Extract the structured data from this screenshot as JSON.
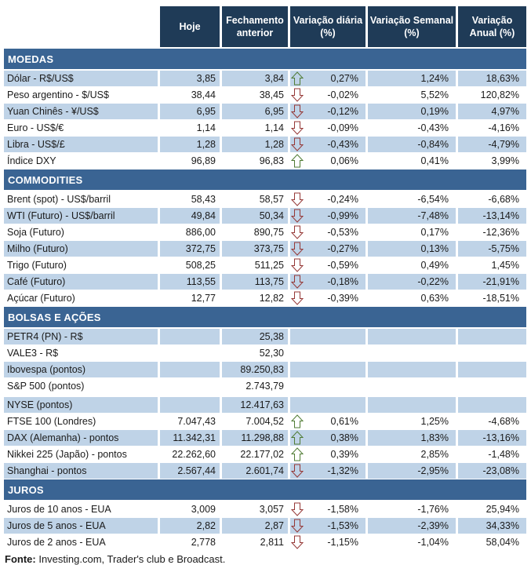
{
  "header": {
    "columns": [
      "Hoje",
      "Fechamento anterior",
      "Variação diária (%)",
      "Variação Semanal (%)",
      "Variação Anual (%)"
    ]
  },
  "colors": {
    "header_bg": "#1F3B57",
    "band_bg": "#3A6493",
    "row_shade": "#BFD3E7",
    "arrow_up_fill_light": "#BFE3A8",
    "arrow_up_fill_dark": "#62A73F",
    "arrow_up_stroke": "#4F7B33",
    "arrow_down_fill_light": "#F2B2AC",
    "arrow_down_fill_dark": "#D3645C",
    "arrow_down_stroke": "#953735"
  },
  "sections": [
    {
      "title": "MOEDAS",
      "rows": [
        {
          "label": "Dólar - R$/US$",
          "hoje": "3,85",
          "fechamento": "3,84",
          "arrow": "up",
          "diaria": "0,27%",
          "semanal": "1,24%",
          "anual": "18,63%",
          "shade": true
        },
        {
          "label": "Peso argentino - $/US$",
          "hoje": "38,44",
          "fechamento": "38,45",
          "arrow": "down",
          "diaria": "-0,02%",
          "semanal": "5,52%",
          "anual": "120,82%",
          "shade": false
        },
        {
          "label": "Yuan Chinês - ¥/US$",
          "hoje": "6,95",
          "fechamento": "6,95",
          "arrow": "down",
          "diaria": "-0,12%",
          "semanal": "0,19%",
          "anual": "4,97%",
          "shade": true
        },
        {
          "label": "Euro - US$/€",
          "hoje": "1,14",
          "fechamento": "1,14",
          "arrow": "down",
          "diaria": "-0,09%",
          "semanal": "-0,43%",
          "anual": "-4,16%",
          "shade": false
        },
        {
          "label": "Libra - US$/£",
          "hoje": "1,28",
          "fechamento": "1,28",
          "arrow": "down",
          "diaria": "-0,43%",
          "semanal": "-0,84%",
          "anual": "-4,79%",
          "shade": true
        },
        {
          "label": "Índice DXY",
          "hoje": "96,89",
          "fechamento": "96,83",
          "arrow": "up",
          "diaria": "0,06%",
          "semanal": "0,41%",
          "anual": "3,99%",
          "shade": false
        }
      ]
    },
    {
      "title": "COMMODITIES",
      "rows": [
        {
          "label": "Brent (spot) - US$/barril",
          "hoje": "58,43",
          "fechamento": "58,57",
          "arrow": "down",
          "diaria": "-0,24%",
          "semanal": "-6,54%",
          "anual": "-6,68%",
          "shade": false
        },
        {
          "label": "WTI (Futuro) - US$/barril",
          "hoje": "49,84",
          "fechamento": "50,34",
          "arrow": "down",
          "diaria": "-0,99%",
          "semanal": "-7,48%",
          "anual": "-13,14%",
          "shade": true
        },
        {
          "label": "Soja (Futuro)",
          "hoje": "886,00",
          "fechamento": "890,75",
          "arrow": "down",
          "diaria": "-0,53%",
          "semanal": "0,17%",
          "anual": "-12,36%",
          "shade": false
        },
        {
          "label": "Milho (Futuro)",
          "hoje": "372,75",
          "fechamento": "373,75",
          "arrow": "down",
          "diaria": "-0,27%",
          "semanal": "0,13%",
          "anual": "-5,75%",
          "shade": true
        },
        {
          "label": "Trigo (Futuro)",
          "hoje": "508,25",
          "fechamento": "511,25",
          "arrow": "down",
          "diaria": "-0,59%",
          "semanal": "0,49%",
          "anual": "1,45%",
          "shade": false
        },
        {
          "label": "Café (Futuro)",
          "hoje": "113,55",
          "fechamento": "113,75",
          "arrow": "down",
          "diaria": "-0,18%",
          "semanal": "-0,22%",
          "anual": "-21,91%",
          "shade": true
        },
        {
          "label": "Açúcar (Futuro)",
          "hoje": "12,77",
          "fechamento": "12,82",
          "arrow": "down",
          "diaria": "-0,39%",
          "semanal": "0,63%",
          "anual": "-18,51%",
          "shade": false
        }
      ]
    },
    {
      "title": "BOLSAS E AÇÕES",
      "rows": [
        {
          "label": "PETR4 (PN) - R$",
          "hoje": "",
          "fechamento": "25,38",
          "arrow": "",
          "diaria": "",
          "semanal": "",
          "anual": "",
          "shade": true
        },
        {
          "label": "VALE3 - R$",
          "hoje": "",
          "fechamento": "52,30",
          "arrow": "",
          "diaria": "",
          "semanal": "",
          "anual": "",
          "shade": false
        },
        {
          "label": "Ibovespa (pontos)",
          "hoje": "",
          "fechamento": "89.250,83",
          "arrow": "",
          "diaria": "",
          "semanal": "",
          "anual": "",
          "shade": true
        },
        {
          "label": "S&P 500 (pontos)",
          "hoje": "",
          "fechamento": "2.743,79",
          "arrow": "",
          "diaria": "",
          "semanal": "",
          "anual": "",
          "shade": false
        },
        {
          "label": "NYSE (pontos)",
          "hoje": "",
          "fechamento": "12.417,63",
          "arrow": "",
          "diaria": "",
          "semanal": "",
          "anual": "",
          "shade": true,
          "gap_before": true
        },
        {
          "label": "FTSE 100 (Londres)",
          "hoje": "7.047,43",
          "fechamento": "7.004,52",
          "arrow": "up",
          "diaria": "0,61%",
          "semanal": "1,25%",
          "anual": "-4,68%",
          "shade": false
        },
        {
          "label": "DAX (Alemanha) - pontos",
          "hoje": "11.342,31",
          "fechamento": "11.298,88",
          "arrow": "up",
          "diaria": "0,38%",
          "semanal": "1,83%",
          "anual": "-13,16%",
          "shade": true
        },
        {
          "label": "Nikkei 225 (Japão) - pontos",
          "hoje": "22.262,60",
          "fechamento": "22.177,02",
          "arrow": "up",
          "diaria": "0,39%",
          "semanal": "2,85%",
          "anual": "-1,48%",
          "shade": false
        },
        {
          "label": "Shanghai - pontos",
          "hoje": "2.567,44",
          "fechamento": "2.601,74",
          "arrow": "down",
          "diaria": "-1,32%",
          "semanal": "-2,95%",
          "anual": "-23,08%",
          "shade": true
        }
      ]
    },
    {
      "title": "JUROS",
      "rows": [
        {
          "label": "Juros de 10 anos - EUA",
          "hoje": "3,009",
          "fechamento": "3,057",
          "arrow": "down",
          "diaria": "-1,58%",
          "semanal": "-1,76%",
          "anual": "25,94%",
          "shade": false
        },
        {
          "label": "Juros de 5 anos - EUA",
          "hoje": "2,82",
          "fechamento": "2,87",
          "arrow": "down",
          "diaria": "-1,53%",
          "semanal": "-2,39%",
          "anual": "34,33%",
          "shade": true
        },
        {
          "label": "Juros de 2 anos - EUA",
          "hoje": "2,778",
          "fechamento": "2,811",
          "arrow": "down",
          "diaria": "-1,15%",
          "semanal": "-1,04%",
          "anual": "58,04%",
          "shade": false
        }
      ]
    }
  ],
  "footer": {
    "label": "Fonte:",
    "text": " Investing.com, Trader's club e Broadcast."
  }
}
